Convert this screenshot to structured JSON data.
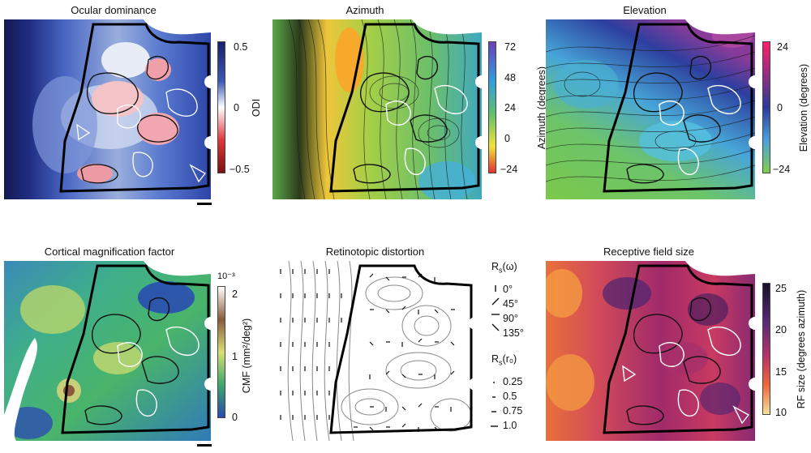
{
  "panels": {
    "ocular": {
      "title": "Ocular dominance",
      "colorbar_label": "ODI",
      "ticks": [
        "0.5",
        "0",
        "−0.5"
      ],
      "colors": [
        "#1a1f6b",
        "#3d58b8",
        "#ffffff",
        "#e0383a",
        "#7a1010"
      ]
    },
    "azimuth": {
      "title": "Azimuth",
      "colorbar_label": "Azimuth (degrees)",
      "ticks": [
        "72",
        "48",
        "24",
        "0",
        "−24"
      ],
      "colors": [
        "#6a3fb5",
        "#2f9fe0",
        "#5ec06a",
        "#f2e23a",
        "#e8302a"
      ]
    },
    "elevation": {
      "title": "Elevation",
      "colorbar_label": "Elevation (degrees)",
      "ticks": [
        "24",
        "0",
        "−24"
      ],
      "colors": [
        "#ff1f6a",
        "#2a3a9a",
        "#4aa0e0",
        "#7ed04a"
      ]
    },
    "cmf": {
      "title": "Cortical magnification factor",
      "colorbar_label": "CMF (mm²/deg²)",
      "exponent": "10⁻³",
      "ticks": [
        "2",
        "1",
        "0"
      ],
      "colors": [
        "#ffffff",
        "#8a5a3a",
        "#d8e070",
        "#3aa86a",
        "#2a4ab0"
      ]
    },
    "distortion": {
      "title": "Retinotopic distortion",
      "legend_angle_heading": "R",
      "legend_angle_sub": "s",
      "legend_angle_arg": "(ω)",
      "angles": [
        "0°",
        "45°",
        "90°",
        "135°"
      ],
      "legend_mag_heading": "R",
      "legend_mag_sub": "s",
      "legend_mag_arg": "(r₀)",
      "magnitudes": [
        "0.25",
        "0.5",
        "0.75",
        "1.0"
      ]
    },
    "rf": {
      "title": "Receptive field size",
      "colorbar_label": "RF size (degrees azimuth)",
      "ticks": [
        "25",
        "20",
        "15",
        "10"
      ],
      "colors": [
        "#15102a",
        "#5a2a78",
        "#b8306a",
        "#ef6a3a",
        "#f7e09a"
      ]
    }
  }
}
